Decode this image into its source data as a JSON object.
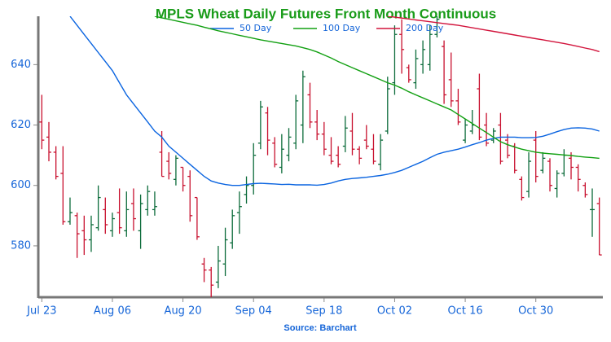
{
  "chart_data": {
    "type": "ohlc",
    "title": "MPLS Wheat Daily Futures Front Month Continuous",
    "source": "Source: Barchart",
    "categories": [
      "Jul 23",
      null,
      null,
      null,
      null,
      null,
      null,
      null,
      null,
      null,
      "Aug 06",
      null,
      null,
      null,
      null,
      null,
      null,
      null,
      null,
      null,
      "Aug 20",
      null,
      null,
      null,
      null,
      null,
      null,
      null,
      null,
      null,
      "Sep 04",
      null,
      null,
      null,
      null,
      null,
      null,
      null,
      null,
      null,
      "Sep 18",
      null,
      null,
      null,
      null,
      null,
      null,
      null,
      null,
      null,
      "Oct 02",
      null,
      null,
      null,
      null,
      null,
      null,
      null,
      null,
      null,
      "Oct 16",
      null,
      null,
      null,
      null,
      null,
      null,
      null,
      null,
      null,
      "Oct 30",
      null,
      null,
      null,
      null,
      null,
      null,
      null,
      null,
      null
    ],
    "open": [
      621,
      616,
      611,
      604,
      588,
      590,
      585,
      582,
      586,
      592,
      585,
      591,
      585,
      594,
      585,
      592,
      592,
      611,
      608,
      602,
      606,
      603,
      596,
      574,
      572,
      568,
      574,
      581,
      591,
      597,
      600,
      614,
      624,
      614,
      606,
      610,
      614,
      620,
      630,
      621,
      617,
      610,
      610,
      613,
      618,
      612,
      615,
      612,
      607,
      618,
      634,
      650,
      639,
      634,
      640,
      640,
      650,
      646,
      635,
      628,
      615,
      618,
      632,
      620,
      615,
      620,
      615,
      613,
      602,
      598,
      615,
      605,
      608,
      599,
      604,
      609,
      606,
      600,
      592,
      594
    ],
    "high": [
      630,
      621,
      613,
      613,
      596,
      591,
      590,
      590,
      600,
      596,
      591,
      599,
      598,
      599,
      597,
      600,
      598,
      618,
      611,
      610,
      606,
      605,
      596,
      576,
      573,
      580,
      586,
      592,
      598,
      603,
      614,
      628,
      626,
      616,
      617,
      619,
      630,
      638,
      634,
      625,
      621,
      616,
      613,
      623,
      624,
      613,
      620,
      617,
      617,
      636,
      653,
      655,
      640,
      645,
      648,
      653,
      656,
      648,
      644,
      632,
      622,
      625,
      637,
      624,
      619,
      624,
      617,
      614,
      603,
      611,
      618,
      611,
      609,
      605,
      612,
      611,
      607,
      601,
      599,
      596
    ],
    "low": [
      612,
      608,
      602,
      587,
      587,
      576,
      577,
      578,
      585,
      584,
      583,
      584,
      583,
      585,
      579,
      590,
      590,
      603,
      602,
      600,
      598,
      588,
      582,
      568,
      563,
      566,
      570,
      579,
      584,
      594,
      597,
      612,
      610,
      606,
      604,
      608,
      612,
      614,
      619,
      615,
      610,
      607,
      606,
      611,
      610,
      607,
      612,
      607,
      605,
      617,
      630,
      637,
      634,
      632,
      637,
      638,
      649,
      627,
      626,
      620,
      614,
      617,
      615,
      613,
      614,
      607,
      609,
      604,
      595,
      596,
      601,
      604,
      598,
      596,
      603,
      602,
      598,
      596,
      583,
      577
    ],
    "close": [
      615,
      611,
      603,
      588,
      591,
      584,
      582,
      587,
      596,
      587,
      589,
      586,
      592,
      589,
      594,
      598,
      593,
      603,
      604,
      609,
      600,
      590,
      583,
      572,
      567,
      575,
      582,
      590,
      593,
      600,
      610,
      626,
      615,
      607,
      612,
      616,
      628,
      636,
      621,
      617,
      612,
      608,
      607,
      619,
      612,
      609,
      613,
      608,
      615,
      632,
      650,
      645,
      635,
      642,
      645,
      650,
      655,
      630,
      628,
      621,
      620,
      620,
      616,
      614,
      618,
      608,
      610,
      605,
      596,
      608,
      603,
      609,
      600,
      604,
      610,
      606,
      602,
      597,
      592,
      577
    ],
    "up_color": "#0b6b3a",
    "down_color": "#c8102e",
    "series": [
      {
        "name": "50 Day",
        "color": "#0a64e0",
        "values": [
          null,
          null,
          null,
          null,
          656,
          653,
          650,
          647,
          644,
          641,
          638,
          634,
          630,
          627,
          624,
          621,
          618,
          616,
          613,
          611,
          609,
          607,
          605,
          603,
          601.5,
          600.8,
          600.3,
          600,
          600,
          600.3,
          600.6,
          600.7,
          600.6,
          600.5,
          600.3,
          600.4,
          600.2,
          600.2,
          600.2,
          600.1,
          600.3,
          600.8,
          601.5,
          602,
          602.3,
          602.5,
          602.7,
          603,
          603.3,
          603.7,
          604.3,
          605,
          606,
          607,
          608,
          609.2,
          610.3,
          611,
          611.5,
          612,
          612.7,
          613.5,
          614.2,
          615,
          615.6,
          616,
          616,
          616,
          615.8,
          615.8,
          615.9,
          616.3,
          617,
          617.8,
          618.5,
          619,
          619.1,
          619,
          618.7,
          618
        ]
      },
      {
        "name": "100 Day",
        "color": "#12a012",
        "values": [
          null,
          null,
          null,
          null,
          null,
          null,
          null,
          null,
          null,
          null,
          null,
          null,
          null,
          null,
          null,
          null,
          656,
          655.5,
          655,
          654.5,
          654,
          653.5,
          653,
          652.4,
          651.8,
          651.2,
          650.7,
          650.2,
          649.7,
          649.2,
          648.7,
          648.2,
          647.8,
          647.4,
          647,
          646.6,
          646.2,
          645.6,
          645,
          644.2,
          643.2,
          642.2,
          641,
          640,
          639,
          638,
          637,
          636,
          635,
          634,
          633.2,
          632.2,
          631,
          630,
          629,
          628,
          627,
          626,
          625,
          623.5,
          622,
          620.5,
          619,
          617.5,
          616,
          614.5,
          613.5,
          612.7,
          612,
          611.5,
          611,
          610.7,
          610.5,
          610.3,
          610.1,
          609.9,
          609.6,
          609.4,
          609.2,
          609
        ]
      },
      {
        "name": "200 Day",
        "color": "#d2143c",
        "values": [
          null,
          null,
          null,
          null,
          null,
          null,
          null,
          null,
          null,
          null,
          null,
          null,
          null,
          null,
          null,
          null,
          null,
          null,
          null,
          null,
          null,
          null,
          null,
          null,
          null,
          null,
          null,
          null,
          null,
          null,
          null,
          null,
          null,
          null,
          null,
          null,
          null,
          null,
          null,
          null,
          null,
          null,
          null,
          null,
          null,
          null,
          null,
          null,
          null,
          656,
          655.7,
          655.4,
          655.1,
          654.8,
          654.5,
          654.2,
          653.9,
          653.6,
          653.3,
          653,
          652.6,
          652.2,
          651.8,
          651.4,
          651,
          650.6,
          650.2,
          649.8,
          649.4,
          649,
          648.6,
          648.2,
          647.8,
          647.4,
          647,
          646.5,
          646,
          645.5,
          645,
          644.3
        ]
      }
    ],
    "ylim": [
      563,
      656
    ],
    "yticks": [
      580,
      600,
      620,
      640
    ]
  }
}
